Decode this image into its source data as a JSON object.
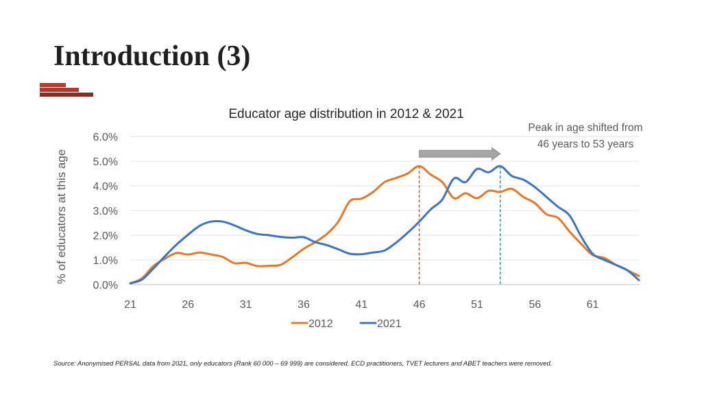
{
  "slide": {
    "title": "Introduction (3)",
    "source_note": "Source: Anonymised PERSAL data from 2021, only educators (Rank 60 000 – 69 999) are considered. ECD practitioners, TVET lecturers and ABET teachers were removed.",
    "accent_colors": [
      "#c0392b",
      "#b03a2e",
      "#8e2a1e"
    ]
  },
  "annotation": {
    "text": "Peak in age shifted from 46 years to 53 years"
  },
  "chart_data": {
    "type": "line",
    "title": "Educator age distribution in 2012 & 2021",
    "ylabel": "% of educators at this age",
    "xlabel": "",
    "xlim": [
      21,
      65
    ],
    "ylim": [
      0,
      6.0
    ],
    "x_ticks": [
      "21",
      "26",
      "31",
      "36",
      "41",
      "46",
      "51",
      "56",
      "61"
    ],
    "y_ticks": [
      "0.0%",
      "1.0%",
      "2.0%",
      "3.0%",
      "4.0%",
      "5.0%",
      "6.0%"
    ],
    "grid": true,
    "legend_position": "bottom",
    "x": [
      21,
      22,
      23,
      24,
      25,
      26,
      27,
      28,
      29,
      30,
      31,
      32,
      33,
      34,
      35,
      36,
      37,
      38,
      39,
      40,
      41,
      42,
      43,
      44,
      45,
      46,
      47,
      48,
      49,
      50,
      51,
      52,
      53,
      54,
      55,
      56,
      57,
      58,
      59,
      60,
      61,
      62,
      63,
      64,
      65
    ],
    "series": [
      {
        "name": "2012",
        "color": "#E87722",
        "values": [
          0.05,
          0.25,
          0.75,
          1.05,
          1.28,
          1.22,
          1.3,
          1.22,
          1.12,
          0.87,
          0.88,
          0.75,
          0.76,
          0.8,
          1.1,
          1.45,
          1.72,
          2.05,
          2.55,
          3.38,
          3.48,
          3.75,
          4.15,
          4.32,
          4.5,
          4.8,
          4.45,
          4.15,
          3.5,
          3.7,
          3.5,
          3.8,
          3.75,
          3.88,
          3.55,
          3.3,
          2.85,
          2.7,
          2.15,
          1.65,
          1.2,
          1.08,
          0.8,
          0.58,
          0.35
        ]
      },
      {
        "name": "2021",
        "color": "#3A75C4",
        "values": [
          0.05,
          0.2,
          0.65,
          1.15,
          1.62,
          2.02,
          2.38,
          2.55,
          2.55,
          2.4,
          2.2,
          2.05,
          2.0,
          1.93,
          1.9,
          1.92,
          1.72,
          1.6,
          1.43,
          1.25,
          1.23,
          1.3,
          1.38,
          1.7,
          2.1,
          2.55,
          3.05,
          3.45,
          4.3,
          4.15,
          4.68,
          4.55,
          4.8,
          4.4,
          4.25,
          3.95,
          3.55,
          3.15,
          2.8,
          1.95,
          1.25,
          1.0,
          0.8,
          0.58,
          0.18
        ]
      }
    ],
    "markers": [
      {
        "x": 46,
        "color": "#E04A2E"
      },
      {
        "x": 53,
        "color": "#1E8FA0"
      }
    ],
    "arrow": {
      "from": 46,
      "to": 53,
      "y": 5.3,
      "color": "#A6A6A6"
    }
  }
}
